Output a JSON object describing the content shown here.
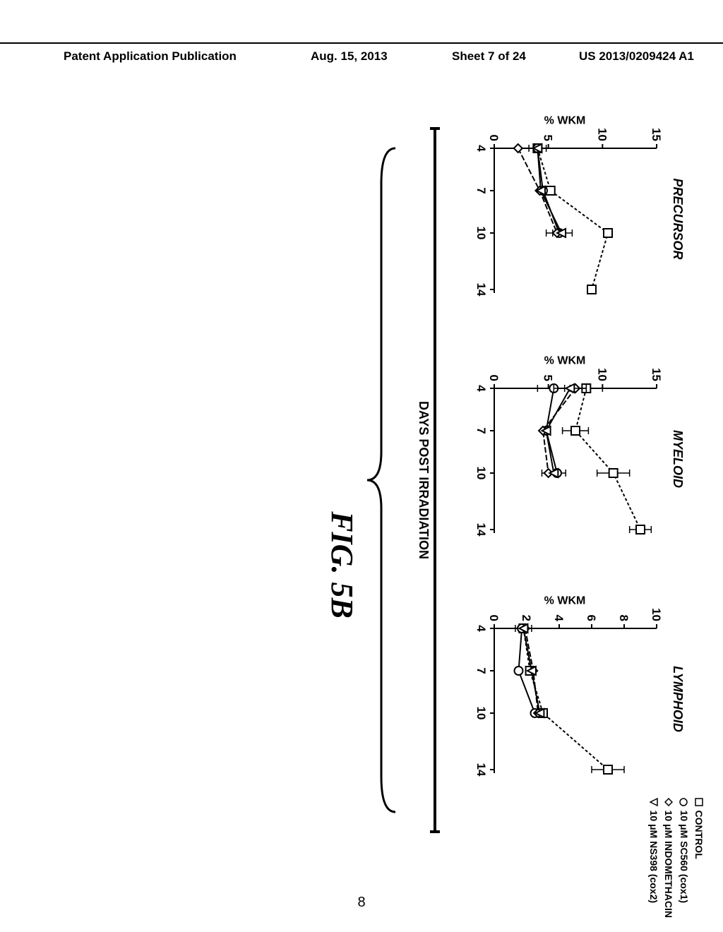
{
  "header": {
    "left": "Patent Application Publication",
    "center": "Aug. 15, 2013",
    "sheet": "Sheet 7 of 24",
    "num": "US 2013/0209424 A1"
  },
  "legend": {
    "items": [
      {
        "marker": "square",
        "label": "CONTROL"
      },
      {
        "marker": "circle",
        "label": "10 μM SC560 (cox1)"
      },
      {
        "marker": "diamond",
        "label": "10 μM INDOMETHACIN"
      },
      {
        "marker": "triangle",
        "label": "10 μM NS398 (cox2)"
      }
    ]
  },
  "x_axis_label": "DAYS POST IRRADIATION",
  "x_ticks": [
    4,
    7,
    10,
    14
  ],
  "charts": [
    {
      "title": "PRECURSOR",
      "y_label": "% WKM",
      "y_lim": [
        0,
        15
      ],
      "y_ticks": [
        0,
        5,
        10,
        15
      ],
      "series": {
        "control": {
          "marker": "square",
          "dash": "4,3",
          "pts": [
            [
              4,
              4.0
            ],
            [
              7,
              5.2
            ],
            [
              10,
              10.5
            ],
            [
              14,
              9.0
            ]
          ],
          "err": [
            [
              4,
              0.8
            ],
            [
              7,
              0.3
            ],
            [
              10,
              0.3
            ],
            [
              14,
              0.3
            ]
          ]
        },
        "sc560": {
          "marker": "circle",
          "dash": "",
          "pts": [
            [
              4,
              4.0
            ],
            [
              7,
              4.5
            ],
            [
              10,
              6.0
            ]
          ],
          "err": [
            [
              10,
              1.2
            ]
          ]
        },
        "indo": {
          "marker": "diamond",
          "dash": "8,3",
          "pts": [
            [
              4,
              2.2
            ],
            [
              7,
              4.2
            ],
            [
              10,
              5.8
            ]
          ],
          "err": [
            [
              10,
              0.4
            ]
          ]
        },
        "ns398": {
          "marker": "triangle",
          "dash": "",
          "pts": [
            [
              4,
              4.0
            ],
            [
              7,
              4.3
            ],
            [
              10,
              6.2
            ]
          ],
          "err": []
        }
      }
    },
    {
      "title": "MYELOID",
      "y_label": "% WKM",
      "y_lim": [
        0,
        15
      ],
      "y_ticks": [
        0,
        5,
        10,
        15
      ],
      "series": {
        "control": {
          "marker": "square",
          "dash": "4,3",
          "pts": [
            [
              4,
              8.5
            ],
            [
              7,
              7.5
            ],
            [
              10,
              11.0
            ],
            [
              14,
              13.5
            ]
          ],
          "err": [
            [
              4,
              1.5
            ],
            [
              7,
              1.2
            ],
            [
              10,
              1.5
            ],
            [
              14,
              1.0
            ]
          ]
        },
        "sc560": {
          "marker": "circle",
          "dash": "",
          "pts": [
            [
              4,
              5.5
            ],
            [
              7,
              4.8
            ],
            [
              10,
              5.8
            ]
          ],
          "err": [
            [
              4,
              1.5
            ],
            [
              10,
              0.8
            ]
          ]
        },
        "indo": {
          "marker": "diamond",
          "dash": "8,3",
          "pts": [
            [
              4,
              7.5
            ],
            [
              7,
              4.5
            ],
            [
              10,
              5.0
            ]
          ],
          "err": [
            [
              4,
              1.0
            ],
            [
              10,
              0.6
            ]
          ]
        },
        "ns398": {
          "marker": "triangle",
          "dash": "",
          "pts": [
            [
              4,
              7.0
            ],
            [
              7,
              4.8
            ],
            [
              10,
              5.5
            ]
          ],
          "err": [
            [
              4,
              1.5
            ]
          ]
        }
      }
    },
    {
      "title": "LYMPHOID",
      "y_label": "% WKM",
      "y_lim": [
        0,
        10
      ],
      "y_ticks": [
        0,
        2,
        4,
        6,
        8,
        10
      ],
      "series": {
        "control": {
          "marker": "square",
          "dash": "4,3",
          "pts": [
            [
              4,
              1.8
            ],
            [
              7,
              2.2
            ],
            [
              10,
              3.0
            ],
            [
              14,
              7.0
            ]
          ],
          "err": [
            [
              4,
              0.5
            ],
            [
              14,
              1.0
            ]
          ]
        },
        "sc560": {
          "marker": "circle",
          "dash": "",
          "pts": [
            [
              4,
              1.7
            ],
            [
              7,
              1.5
            ],
            [
              10,
              2.5
            ]
          ],
          "err": []
        },
        "indo": {
          "marker": "diamond",
          "dash": "8,3",
          "pts": [
            [
              4,
              1.9
            ],
            [
              7,
              2.4
            ],
            [
              10,
              2.7
            ]
          ],
          "err": []
        },
        "ns398": {
          "marker": "triangle",
          "dash": "",
          "pts": [
            [
              4,
              1.8
            ],
            [
              7,
              2.3
            ],
            [
              10,
              2.8
            ]
          ],
          "err": []
        }
      }
    }
  ],
  "figure_label": "FIG. 5B",
  "page_number": "8"
}
